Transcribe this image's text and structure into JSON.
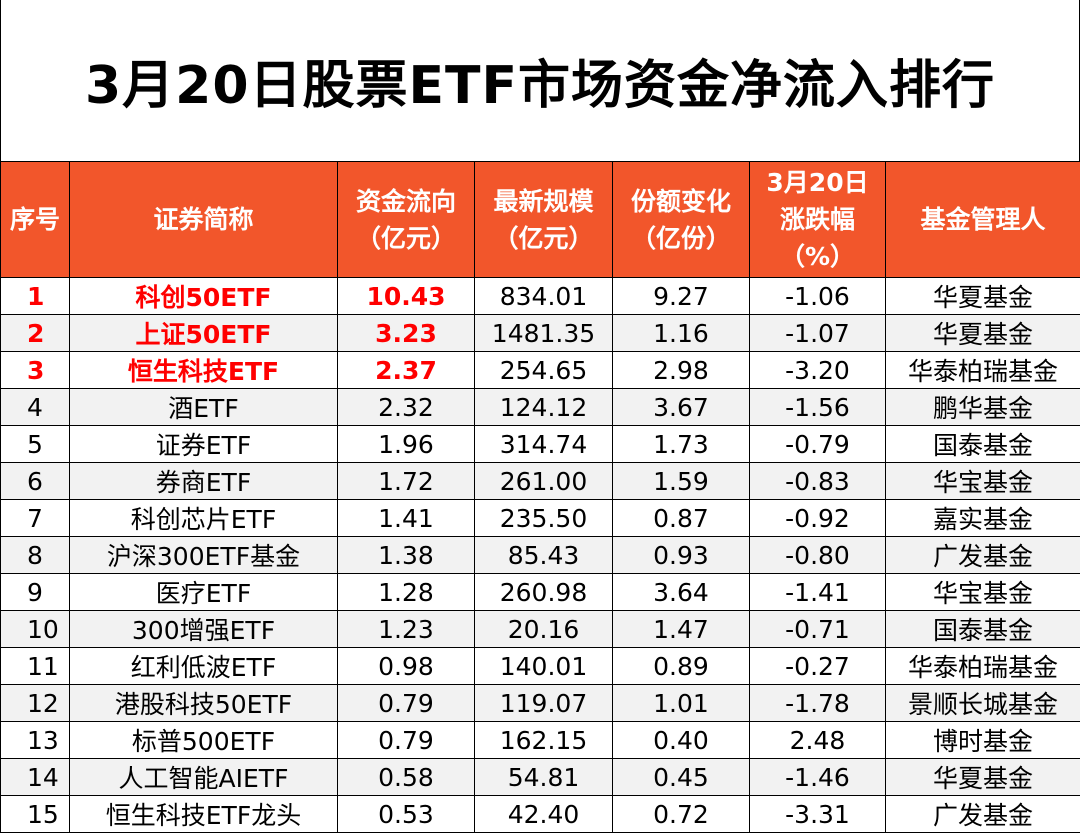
{
  "title": "3月20日股票ETF市场资金净流入排行",
  "accent_color": "#f2562b",
  "highlight_color": "#ff0000",
  "headers": {
    "rank": "序号",
    "name": "证券简称",
    "flow_line1": "资金流向",
    "flow_line2": "（亿元）",
    "scale_line1": "最新规模",
    "scale_line2": "（亿元）",
    "share_line1": "份额变化",
    "share_line2": "（亿份）",
    "change_line1": "3月20日",
    "change_line2": "涨跌幅",
    "change_line3": "（%）",
    "manager": "基金管理人"
  },
  "rows": [
    {
      "rank": "1",
      "name": "科创50ETF",
      "flow": "10.43",
      "scale": "834.01",
      "share": "9.27",
      "change": "-1.06",
      "manager": "华夏基金"
    },
    {
      "rank": "2",
      "name": "上证50ETF",
      "flow": "3.23",
      "scale": "1481.35",
      "share": "1.16",
      "change": "-1.07",
      "manager": "华夏基金"
    },
    {
      "rank": "3",
      "name": "恒生科技ETF",
      "flow": "2.37",
      "scale": "254.65",
      "share": "2.98",
      "change": "-3.20",
      "manager": "华泰柏瑞基金"
    },
    {
      "rank": "4",
      "name": "酒ETF",
      "flow": "2.32",
      "scale": "124.12",
      "share": "3.67",
      "change": "-1.56",
      "manager": "鹏华基金"
    },
    {
      "rank": "5",
      "name": "证券ETF",
      "flow": "1.96",
      "scale": "314.74",
      "share": "1.73",
      "change": "-0.79",
      "manager": "国泰基金"
    },
    {
      "rank": "6",
      "name": "券商ETF",
      "flow": "1.72",
      "scale": "261.00",
      "share": "1.59",
      "change": "-0.83",
      "manager": "华宝基金"
    },
    {
      "rank": "7",
      "name": "科创芯片ETF",
      "flow": "1.41",
      "scale": "235.50",
      "share": "0.87",
      "change": "-0.92",
      "manager": "嘉实基金"
    },
    {
      "rank": "8",
      "name": "沪深300ETF基金",
      "flow": "1.38",
      "scale": "85.43",
      "share": "0.93",
      "change": "-0.80",
      "manager": "广发基金"
    },
    {
      "rank": "9",
      "name": "医疗ETF",
      "flow": "1.28",
      "scale": "260.98",
      "share": "3.64",
      "change": "-1.41",
      "manager": "华宝基金"
    },
    {
      "rank": "10",
      "name": "300增强ETF",
      "flow": "1.23",
      "scale": "20.16",
      "share": "1.47",
      "change": "-0.71",
      "manager": "国泰基金"
    },
    {
      "rank": "11",
      "name": "红利低波ETF",
      "flow": "0.98",
      "scale": "140.01",
      "share": "0.89",
      "change": "-0.27",
      "manager": "华泰柏瑞基金"
    },
    {
      "rank": "12",
      "name": "港股科技50ETF",
      "flow": "0.79",
      "scale": "119.07",
      "share": "1.01",
      "change": "-1.78",
      "manager": "景顺长城基金"
    },
    {
      "rank": "13",
      "name": "标普500ETF",
      "flow": "0.79",
      "scale": "162.15",
      "share": "0.40",
      "change": "2.48",
      "manager": "博时基金"
    },
    {
      "rank": "14",
      "name": "人工智能AIETF",
      "flow": "0.58",
      "scale": "54.81",
      "share": "0.45",
      "change": "-1.46",
      "manager": "华夏基金"
    },
    {
      "rank": "15",
      "name": "恒生科技ETF龙头",
      "flow": "0.53",
      "scale": "42.40",
      "share": "0.72",
      "change": "-3.31",
      "manager": "广发基金"
    }
  ]
}
